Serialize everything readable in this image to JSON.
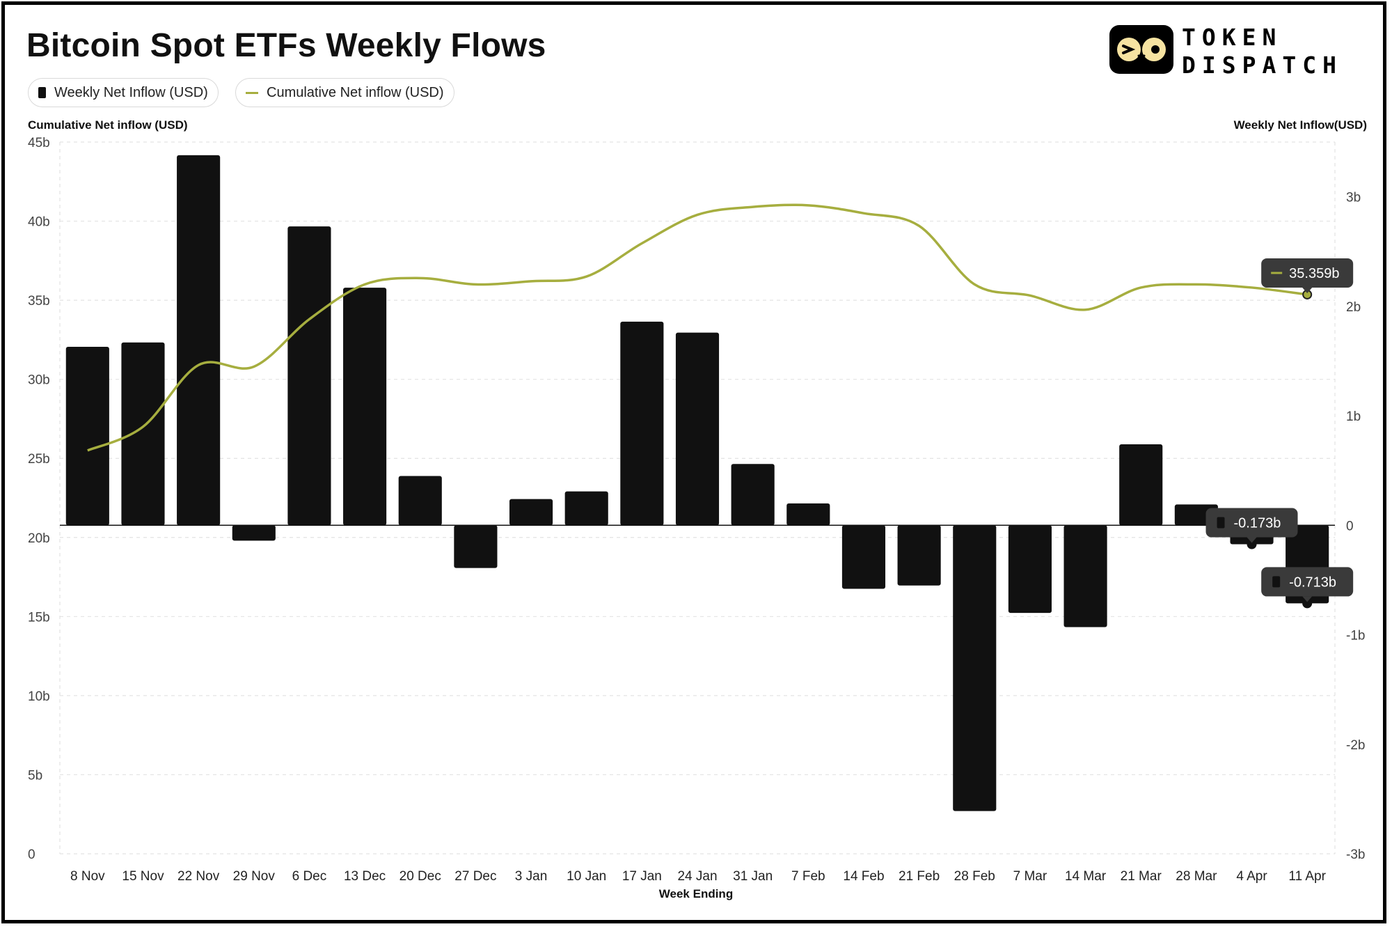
{
  "title": "Bitcoin Spot ETFs Weekly Flows",
  "brand": {
    "word1": "TOKEN",
    "word2": "DISPATCH"
  },
  "legend": {
    "weekly": "Weekly Net Inflow (USD)",
    "cumulative": "Cumulative Net inflow (USD)"
  },
  "colors": {
    "bar": "#111111",
    "line": "#a6ae3f",
    "tooltip": "#3a3a3a",
    "grid": "#e3e3e3"
  },
  "chart_data": {
    "type": "bar",
    "title": "Bitcoin Spot ETFs Weekly Flows",
    "xlabel": "Week Ending",
    "ylabel_left": "Cumulative Net inflow (USD)",
    "ylabel_right": "Weekly Net Inflow(USD)",
    "categories": [
      "8 Nov",
      "15 Nov",
      "22 Nov",
      "29 Nov",
      "6 Dec",
      "13 Dec",
      "20 Dec",
      "27 Dec",
      "3 Jan",
      "10 Jan",
      "17 Jan",
      "24 Jan",
      "31 Jan",
      "7 Feb",
      "14 Feb",
      "21 Feb",
      "28 Feb",
      "7 Mar",
      "14 Mar",
      "21 Mar",
      "28 Mar",
      "4 Apr",
      "11 Apr"
    ],
    "series": [
      {
        "name": "Weekly Net Inflow (USD)",
        "type": "bar",
        "axis": "right",
        "unit": "billion USD",
        "values": [
          1.63,
          1.67,
          3.38,
          -0.14,
          2.73,
          2.17,
          0.45,
          -0.39,
          0.24,
          0.31,
          1.86,
          1.76,
          0.56,
          0.2,
          -0.58,
          -0.55,
          -2.61,
          -0.8,
          -0.93,
          0.74,
          0.19,
          -0.173,
          -0.713
        ]
      },
      {
        "name": "Cumulative Net inflow (USD)",
        "type": "line",
        "axis": "left",
        "unit": "billion USD",
        "values": [
          25.5,
          27.0,
          30.9,
          30.8,
          33.8,
          36.0,
          36.4,
          36.0,
          36.2,
          36.5,
          38.6,
          40.4,
          40.9,
          41.0,
          40.5,
          39.7,
          36.0,
          35.3,
          34.4,
          35.8,
          36.0,
          35.8,
          35.359
        ]
      }
    ],
    "ylim_left": [
      0,
      45
    ],
    "yticks_left": [
      "0",
      "5b",
      "10b",
      "15b",
      "20b",
      "25b",
      "30b",
      "35b",
      "40b",
      "45b"
    ],
    "ylim_right": [
      -3,
      3.5
    ],
    "yticks_right": [
      "-3b",
      "-2b",
      "-1b",
      "0",
      "1b",
      "2b",
      "3b"
    ],
    "grid": true,
    "legend_position": "top-left",
    "tooltips": [
      {
        "series": "Cumulative Net inflow (USD)",
        "category": "11 Apr",
        "label": "35.359b"
      },
      {
        "series": "Weekly Net Inflow (USD)",
        "category": "4 Apr",
        "label": "-0.173b"
      },
      {
        "series": "Weekly Net Inflow (USD)",
        "category": "11 Apr",
        "label": "-0.713b"
      }
    ]
  }
}
